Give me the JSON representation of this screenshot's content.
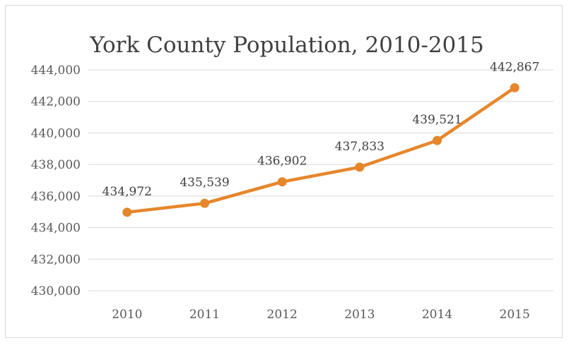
{
  "chart_data": {
    "type": "line",
    "title": "York County Population, 2010-2015",
    "categories": [
      "2010",
      "2011",
      "2012",
      "2013",
      "2014",
      "2015"
    ],
    "series": [
      {
        "values": [
          434972,
          435539,
          436902,
          437833,
          439521,
          442867
        ]
      }
    ],
    "data_labels": [
      "434,972",
      "435,539",
      "436,902",
      "437,833",
      "439,521",
      "442,867"
    ],
    "y_ticks": [
      "430,000",
      "432,000",
      "434,000",
      "436,000",
      "438,000",
      "440,000",
      "442,000",
      "444,000"
    ],
    "ylim": [
      430000,
      444000
    ],
    "grid": true,
    "legend": "none",
    "colors": {
      "line": "#E6862B",
      "grid": "#d9d9d9",
      "text": "#595959"
    }
  }
}
